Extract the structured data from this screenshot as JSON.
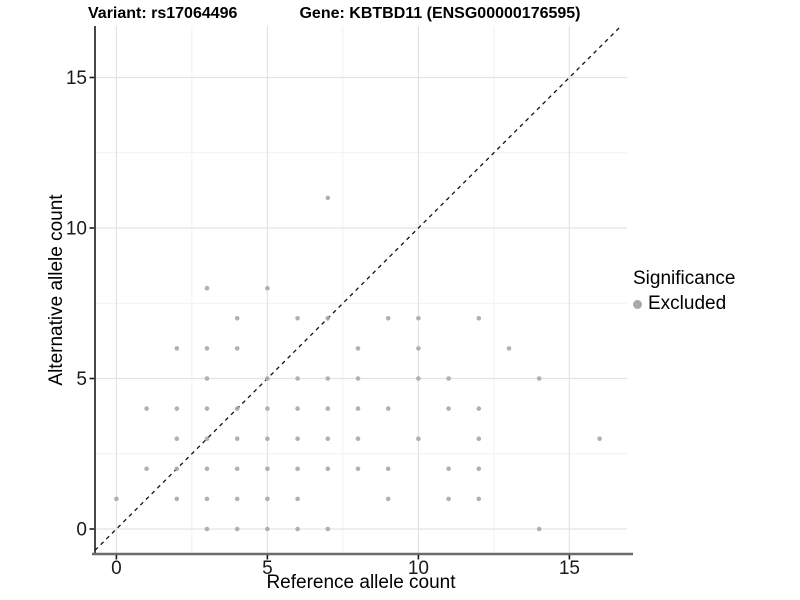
{
  "chart_data": {
    "type": "scatter",
    "title_left": "Variant: rs17064496",
    "title_right": "Gene: KBTBD11 (ENSG00000176595)",
    "xlabel": "Reference allele count",
    "ylabel": "Alternative allele count",
    "xticks": [
      0,
      5,
      10,
      15
    ],
    "yticks": [
      0,
      5,
      10,
      15
    ],
    "minor_ticks": [
      2.5,
      7.5,
      12.5
    ],
    "xlim": [
      -0.71,
      16.9
    ],
    "ylim": [
      -0.83,
      16.71
    ],
    "grid": "major and minor, light gray on white",
    "identity_line": {
      "type": "y=x",
      "style": "dashed",
      "color": "#111111"
    },
    "legend": {
      "title": "Significance",
      "position": "right",
      "items": [
        {
          "label": "Excluded",
          "color": "#a9a9a9"
        }
      ]
    },
    "series": [
      {
        "name": "Excluded",
        "color": "#a9a9a9",
        "points": [
          [
            3,
            0
          ],
          [
            4,
            0
          ],
          [
            5,
            0
          ],
          [
            6,
            0
          ],
          [
            7,
            0
          ],
          [
            14,
            0
          ],
          [
            0,
            1
          ],
          [
            2,
            1
          ],
          [
            3,
            1
          ],
          [
            4,
            1
          ],
          [
            5,
            1
          ],
          [
            6,
            1
          ],
          [
            9,
            1
          ],
          [
            11,
            1
          ],
          [
            12,
            1
          ],
          [
            1,
            2
          ],
          [
            2,
            2
          ],
          [
            3,
            2
          ],
          [
            4,
            2
          ],
          [
            5,
            2
          ],
          [
            6,
            2
          ],
          [
            7,
            2
          ],
          [
            8,
            2
          ],
          [
            9,
            2
          ],
          [
            11,
            2
          ],
          [
            12,
            2
          ],
          [
            2,
            3
          ],
          [
            3,
            3
          ],
          [
            4,
            3
          ],
          [
            5,
            3
          ],
          [
            6,
            3
          ],
          [
            7,
            3
          ],
          [
            8,
            3
          ],
          [
            10,
            3
          ],
          [
            12,
            3
          ],
          [
            16,
            3
          ],
          [
            1,
            4
          ],
          [
            2,
            4
          ],
          [
            3,
            4
          ],
          [
            4,
            4
          ],
          [
            5,
            4
          ],
          [
            6,
            4
          ],
          [
            7,
            4
          ],
          [
            8,
            4
          ],
          [
            9,
            4
          ],
          [
            11,
            4
          ],
          [
            12,
            4
          ],
          [
            3,
            5
          ],
          [
            5,
            5
          ],
          [
            6,
            5
          ],
          [
            7,
            5
          ],
          [
            8,
            5
          ],
          [
            10,
            5
          ],
          [
            11,
            5
          ],
          [
            14,
            5
          ],
          [
            2,
            6
          ],
          [
            3,
            6
          ],
          [
            4,
            6
          ],
          [
            8,
            6
          ],
          [
            10,
            6
          ],
          [
            13,
            6
          ],
          [
            4,
            7
          ],
          [
            6,
            7
          ],
          [
            7,
            7
          ],
          [
            9,
            7
          ],
          [
            10,
            7
          ],
          [
            12,
            7
          ],
          [
            3,
            8
          ],
          [
            5,
            8
          ],
          [
            7,
            11
          ]
        ]
      }
    ]
  },
  "colors": {
    "point": "#a9a9a9",
    "grid_major": "#e3e3e3",
    "grid_minor": "#f1f1f1",
    "axis_line_left": "#1a1a1a",
    "axis_line_bottom": "#6b6b6b",
    "tick_mark": "#1a1a1a",
    "tick_label": "#1a1a1a",
    "identity_line": "#111111",
    "background": "#ffffff"
  }
}
